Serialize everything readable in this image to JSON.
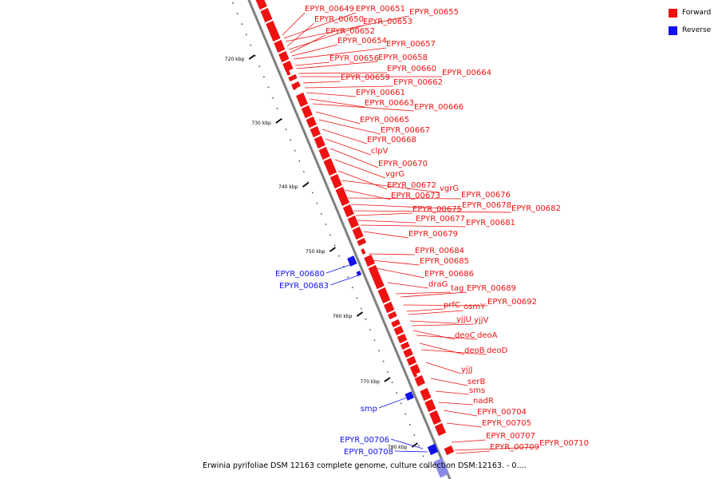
{
  "colors": {
    "forward": "#ee1111",
    "reverse": "#1111ee",
    "backbone": "#888888"
  },
  "legend": [
    {
      "label": "Forward",
      "color": "#ee1111"
    },
    {
      "label": "Reverse",
      "color": "#1111ee"
    }
  ],
  "ticks": [
    "720 kbp",
    "730 kbp",
    "740 kbp",
    "750 kbp",
    "760 kbp",
    "770 kbp",
    "780 kbp"
  ],
  "caption": "Erwinia pyrifoliae DSM 12163 complete genome, culture collection DSM:12163. - 0....",
  "forward_labels": [
    "EPYR_00649",
    "EPYR_00651",
    "EPYR_00655",
    "EPYR_00650",
    "EPYR_00653",
    "EPYR_00652",
    "EPYR_00654",
    "EPYR_00657",
    "EPYR_00656",
    "EPYR_00658",
    "EPYR_00660",
    "EPYR_00664",
    "EPYR_00659",
    "EPYR_00662",
    "EPYR_00661",
    "EPYR_00663",
    "EPYR_00666",
    "EPYR_00665",
    "EPYR_00667",
    "EPYR_00668",
    "clpV",
    "EPYR_00670",
    "vgrG",
    "EPYR_00672",
    "vgrG",
    "EPYR_00673",
    "EPYR_00676",
    "EPYR_00678",
    "EPYR_00682",
    "EPYR_00675",
    "EPYR_00677",
    "EPYR_00681",
    "EPYR_00679",
    "EPYR_00684",
    "EPYR_00685",
    "EPYR_00686",
    "draG",
    "tag",
    "EPYR_00689",
    "EPYR_00692",
    "prfC",
    "osmY",
    "yjjU",
    "yjjV",
    "deoC",
    "deoA",
    "deoB",
    "deoD",
    "yjjJ",
    "serB",
    "sms",
    "nadR",
    "EPYR_00704",
    "EPYR_00705",
    "EPYR_00707",
    "EPYR_00710",
    "EPYR_00709"
  ],
  "reverse_labels": [
    "EPYR_00680",
    "EPYR_00683",
    "smp",
    "EPYR_00706",
    "EPYR_00708"
  ]
}
